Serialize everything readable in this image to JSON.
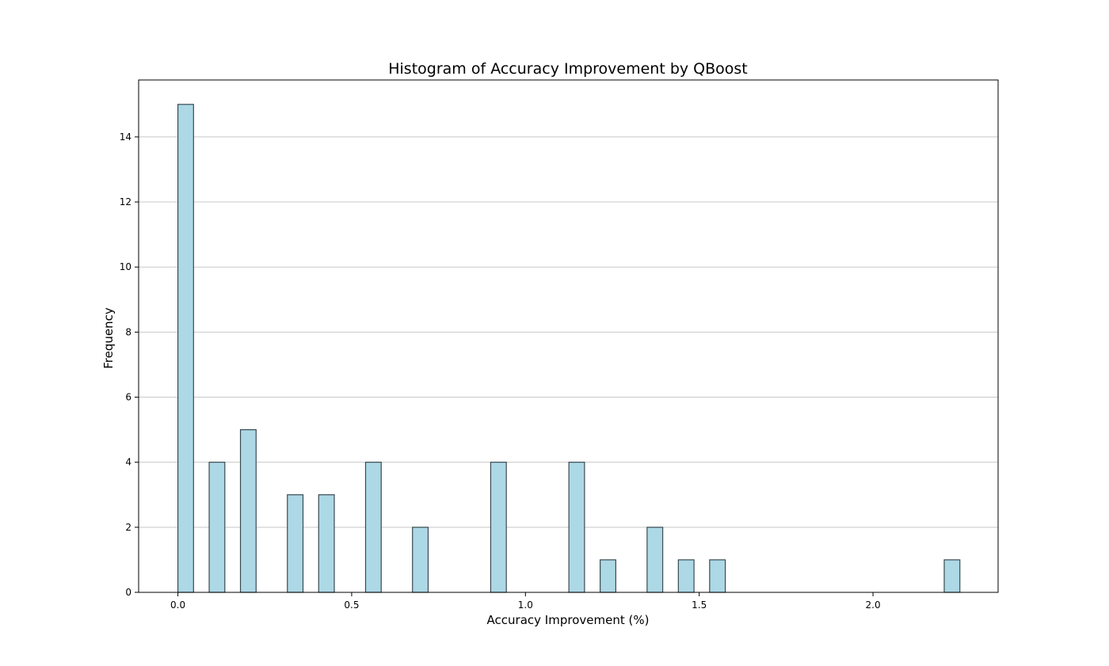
{
  "chart_data": {
    "type": "bar",
    "title": "Histogram of Accuracy Improvement by QBoost",
    "xlabel": "Accuracy Improvement (%)",
    "ylabel": "Frequency",
    "xlim": [
      -0.113,
      2.36
    ],
    "ylim": [
      0,
      15.75
    ],
    "xticks": [
      0.0,
      0.5,
      1.0,
      1.5,
      2.0
    ],
    "xtick_labels": [
      "0.0",
      "0.5",
      "1.0",
      "1.5",
      "2.0"
    ],
    "yticks": [
      0,
      2,
      4,
      6,
      8,
      10,
      12,
      14
    ],
    "ytick_labels": [
      "0",
      "2",
      "4",
      "6",
      "8",
      "10",
      "12",
      "14"
    ],
    "bin_width": 0.045,
    "bins": [
      {
        "x": 0.0,
        "count": 15
      },
      {
        "x": 0.09,
        "count": 4
      },
      {
        "x": 0.18,
        "count": 5
      },
      {
        "x": 0.315,
        "count": 3
      },
      {
        "x": 0.405,
        "count": 3
      },
      {
        "x": 0.54,
        "count": 4
      },
      {
        "x": 0.675,
        "count": 2
      },
      {
        "x": 0.9,
        "count": 4
      },
      {
        "x": 1.125,
        "count": 4
      },
      {
        "x": 1.215,
        "count": 1
      },
      {
        "x": 1.35,
        "count": 2
      },
      {
        "x": 1.44,
        "count": 1
      },
      {
        "x": 1.53,
        "count": 1
      },
      {
        "x": 2.205,
        "count": 1
      }
    ],
    "grid": {
      "y": true,
      "x": false
    },
    "colors": {
      "bar_fill": "#add8e6",
      "bar_edge": "#3a4a50",
      "grid": "#c8c8c8",
      "axis": "#000000"
    }
  }
}
